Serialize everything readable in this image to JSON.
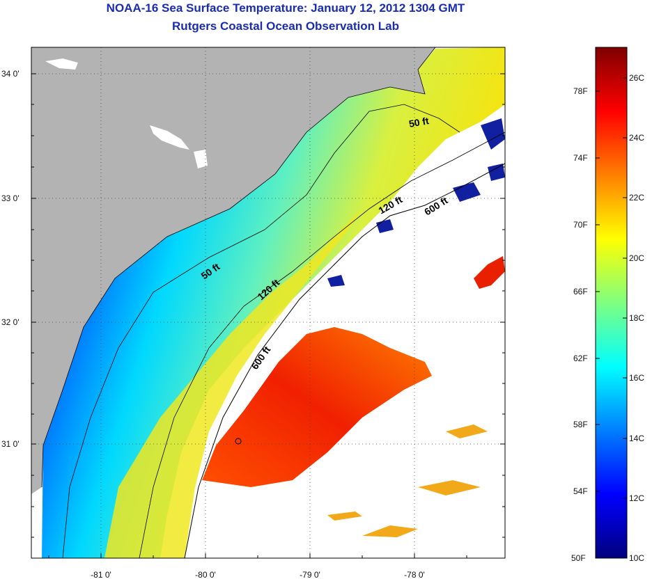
{
  "title": "NOAA-16 Sea Surface Temperature:  January 12, 2012 1304 GMT",
  "subtitle": "Rutgers Coastal Ocean Observation Lab",
  "map": {
    "lat_labels": [
      "34 0'",
      "33 0'",
      "32 0'",
      "31 0'"
    ],
    "lon_labels": [
      "-81 0'",
      "-80 0'",
      "-79 0'",
      "-78 0'"
    ],
    "contours": [
      "50 ft",
      "120 ft",
      "600 ft",
      "50 ft",
      "120 ft",
      "600 ft"
    ],
    "colors": {
      "land": "#b3b3b3",
      "ocean_cloud": "#ffffff",
      "grid": "#555555"
    }
  },
  "colorbar": {
    "fahrenheit_labels": [
      "78F",
      "74F",
      "70F",
      "66F",
      "62F",
      "58F",
      "54F",
      "50F"
    ],
    "celsius_labels": [
      "26C",
      "24C",
      "22C",
      "20C",
      "18C",
      "16C",
      "14C",
      "12C",
      "10C"
    ],
    "colors": [
      "#00007f",
      "#0000ff",
      "#007fff",
      "#00ffff",
      "#7fff7f",
      "#ffff00",
      "#ff7f00",
      "#ff0000",
      "#7f0000"
    ]
  }
}
